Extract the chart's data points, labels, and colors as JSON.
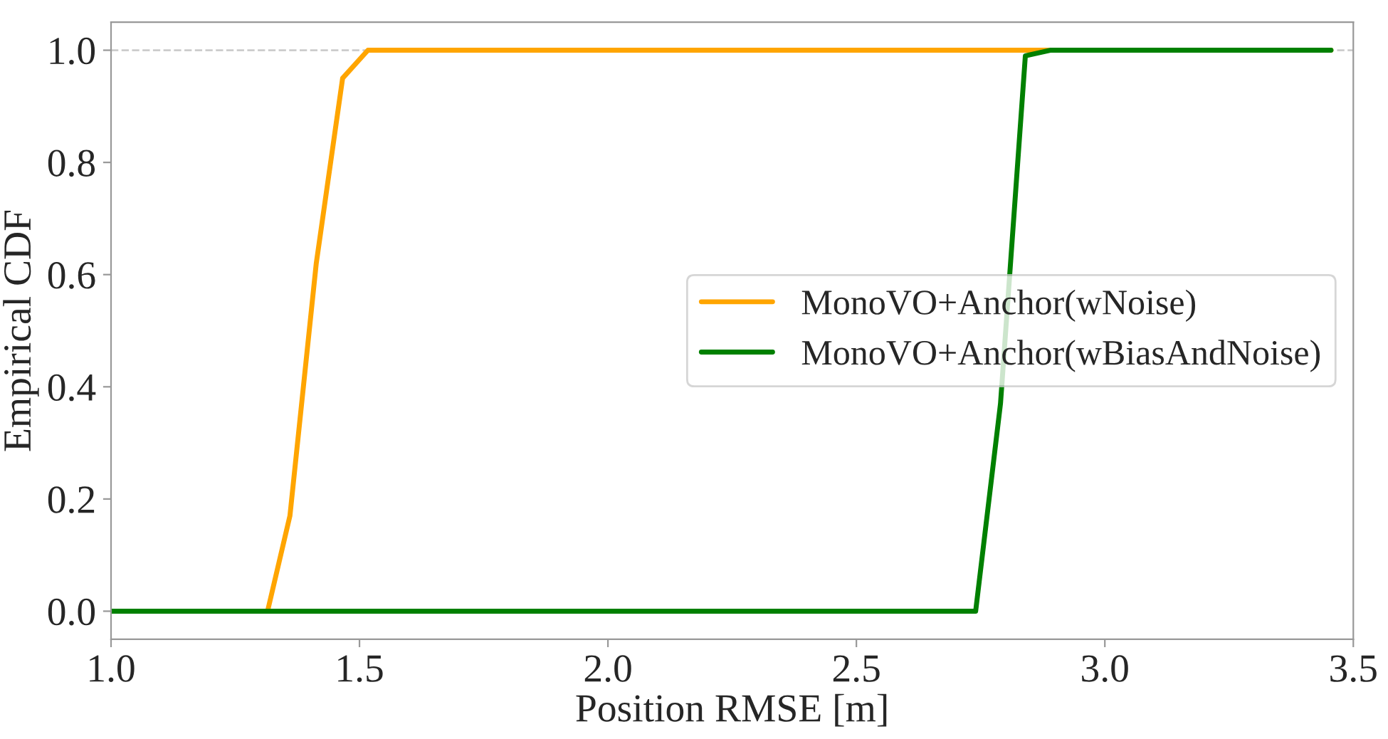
{
  "chart_data": {
    "type": "line",
    "xlabel": "Position RMSE [m]",
    "ylabel": "Empirical CDF",
    "series": [
      {
        "name": "MonoVO+Anchor(wNoise)",
        "color": "#ffa500",
        "x": [
          1.0,
          1.315,
          1.36,
          1.413,
          1.466,
          1.517,
          3.455
        ],
        "values": [
          0,
          0,
          0.17,
          0.62,
          0.95,
          1.0,
          1.0
        ]
      },
      {
        "name": "MonoVO+Anchor(wBiasAndNoise)",
        "color": "#008000",
        "x": [
          1.0,
          2.74,
          2.79,
          2.84,
          2.89,
          3.455
        ],
        "values": [
          0,
          0,
          0.37,
          0.99,
          1.0,
          1.0
        ]
      }
    ],
    "xlim": [
      1.0,
      3.5
    ],
    "xticks": [
      {
        "value": 1.0,
        "label": "1.0"
      },
      1.5,
      {
        "value": 2.0,
        "label": "2.0"
      },
      2.5,
      {
        "value": 3.0,
        "label": "3.0"
      },
      3.5
    ],
    "ylim": [
      -0.05,
      1.05
    ],
    "yticks": [
      {
        "value": 0.0,
        "label": "0.0"
      },
      0.2,
      0.4,
      0.6,
      0.8,
      {
        "value": 1.0,
        "label": "1.0"
      }
    ],
    "ref_lines": [
      {
        "axis": "y",
        "value": 1.0,
        "color": "#cccccc",
        "line_style": "dashed"
      }
    ],
    "legend": "right",
    "grid": false,
    "marker": "none",
    "line_style": "solid"
  }
}
